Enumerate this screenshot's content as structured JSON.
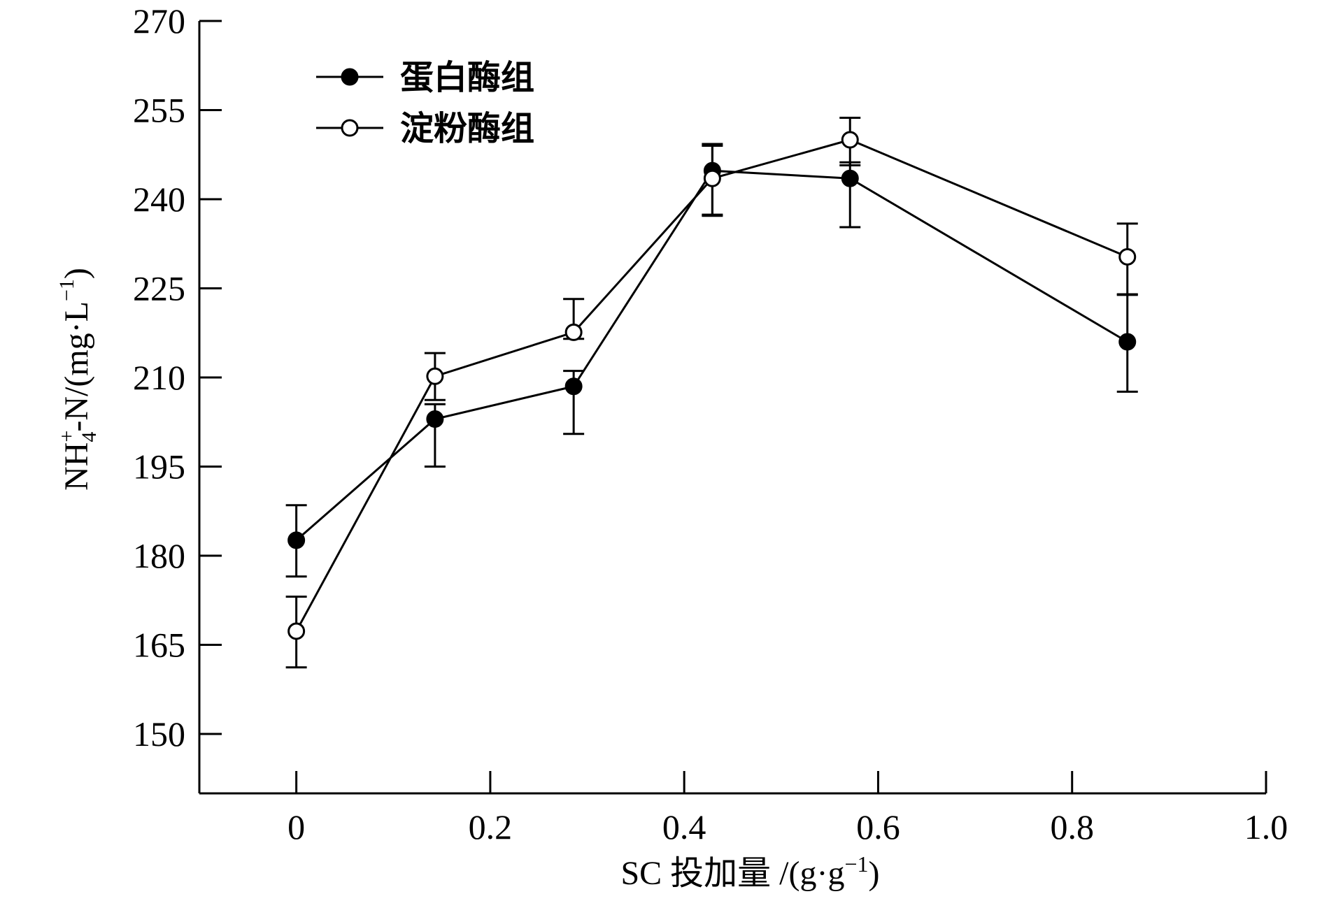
{
  "chart_data": {
    "type": "line",
    "title": "",
    "xlabel": "SC 投加量 /(g·g",
    "xlabel_sup": "−1",
    "xlabel_end": ")",
    "ylabel": {
      "pre": "NH",
      "sup": "+",
      "sub": "4",
      "mid": "-N/(mg·L",
      "sup2": "−1",
      "end": ")"
    },
    "xlim": [
      -0.1,
      1.0
    ],
    "ylim": [
      140,
      270
    ],
    "xticks": [
      0,
      0.2,
      0.4,
      0.6,
      0.8,
      1.0
    ],
    "xtick_labels": [
      "0",
      "0.2",
      "0.4",
      "0.6",
      "0.8",
      "1.0"
    ],
    "yticks": [
      150,
      165,
      180,
      195,
      210,
      225,
      240,
      255,
      270
    ],
    "ytick_labels": [
      "150",
      "165",
      "180",
      "195",
      "210",
      "225",
      "240",
      "255",
      "270"
    ],
    "legend_position": "top-left",
    "series": [
      {
        "name": "蛋白酶组",
        "marker": "filled-circle",
        "x": [
          0,
          0.143,
          0.286,
          0.429,
          0.571,
          0.857
        ],
        "values": [
          182.6,
          203.0,
          208.5,
          244.8,
          243.5,
          216.0
        ],
        "err_low": [
          6.1,
          8.0,
          8.0,
          7.6,
          8.2,
          8.4
        ],
        "err_high": [
          5.9,
          2.5,
          2.6,
          4.2,
          2.7,
          8.0
        ]
      },
      {
        "name": "淀粉酶组",
        "marker": "open-circle",
        "x": [
          0,
          0.143,
          0.286,
          0.429,
          0.571,
          0.857
        ],
        "values": [
          167.3,
          210.2,
          217.6,
          243.5,
          250.0,
          230.3
        ],
        "err_low": [
          6.1,
          4.0,
          1.1,
          6.1,
          4.3,
          6.4
        ],
        "err_high": [
          5.8,
          3.9,
          5.6,
          5.8,
          3.7,
          5.6
        ]
      }
    ]
  }
}
